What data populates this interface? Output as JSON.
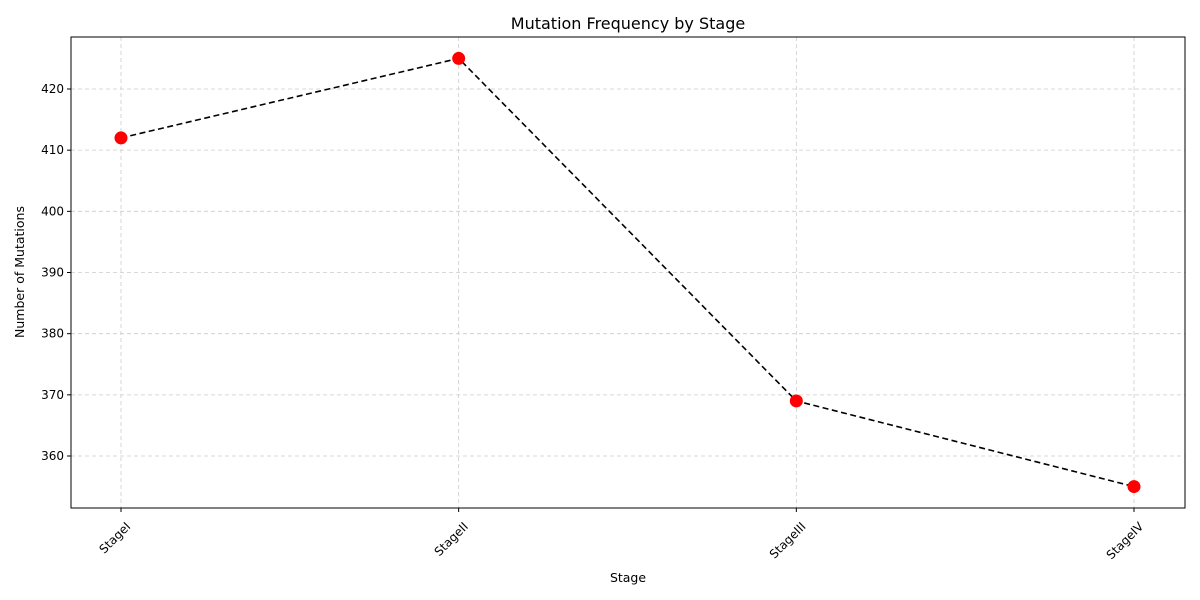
{
  "chart_data": {
    "type": "line",
    "title": "Mutation Frequency by Stage",
    "xlabel": "Stage",
    "ylabel": "Number of Mutations",
    "categories": [
      "StageI",
      "StageII",
      "StageIII",
      "StageIV"
    ],
    "series": [
      {
        "values": [
          412,
          425,
          369,
          355
        ]
      }
    ],
    "ylim": [
      351.5,
      428.5
    ],
    "yticks": [
      360,
      370,
      380,
      390,
      400,
      410,
      420
    ],
    "grid": true,
    "line_style": "dashed",
    "line_color": "#000000",
    "marker_color": "#ff0000",
    "x_tick_rotation": 45
  }
}
